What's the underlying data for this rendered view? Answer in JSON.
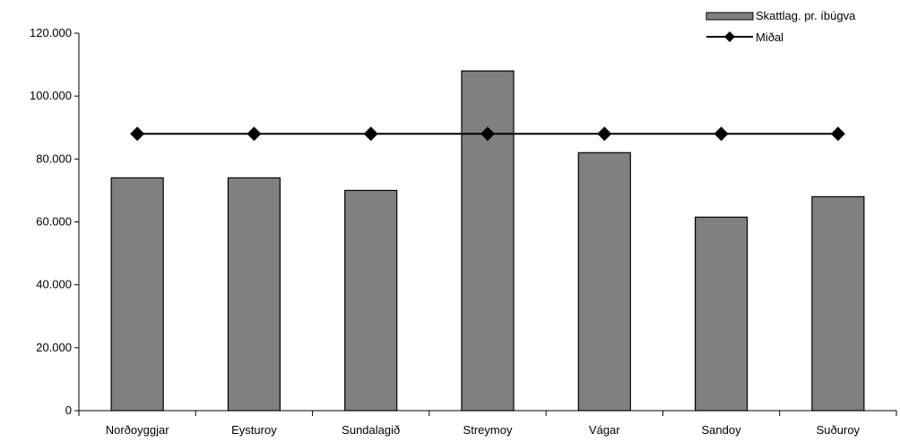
{
  "chart_data": {
    "type": "bar",
    "title": "",
    "xlabel": "",
    "ylabel": "",
    "ylim": [
      0,
      120000
    ],
    "y_ticks": [
      0,
      20000,
      40000,
      60000,
      80000,
      100000,
      120000
    ],
    "y_tick_labels": [
      "0",
      "20.000",
      "40.000",
      "60.000",
      "80.000",
      "100.000",
      "120.000"
    ],
    "categories": [
      "Norðoyggjar",
      "Eysturoy",
      "Sundalagið",
      "Streymoy",
      "Vágar",
      "Sandoy",
      "Suðuroy"
    ],
    "series": [
      {
        "name": "Skattlag. pr. íbúgva",
        "kind": "bar",
        "color": "#808080",
        "values": [
          74000,
          74000,
          70000,
          108000,
          82000,
          61500,
          68000
        ]
      },
      {
        "name": "Miðal",
        "kind": "line",
        "color": "#000000",
        "values": [
          88000,
          88000,
          88000,
          88000,
          88000,
          88000,
          88000
        ]
      }
    ],
    "legend_position": "top-right",
    "grid": false
  }
}
